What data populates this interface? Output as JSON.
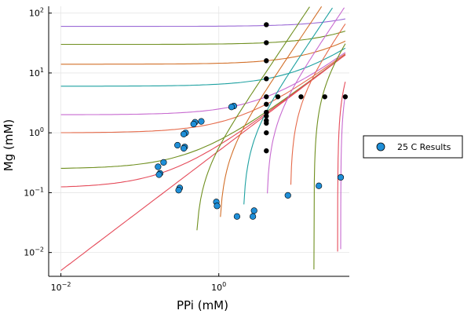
{
  "chart_data": {
    "type": "scatter",
    "title": "",
    "xlabel": "PPi (mM)",
    "ylabel": "Mg (mM)",
    "xscale": "log",
    "yscale": "log",
    "xlim": [
      0.007,
      45
    ],
    "ylim": [
      0.004,
      130
    ],
    "x_ticks": [
      {
        "value": 0.01,
        "base": "10",
        "exp": "−2"
      },
      {
        "value": 1,
        "base": "10",
        "exp": "0"
      }
    ],
    "y_ticks": [
      {
        "value": 0.01,
        "base": "10",
        "exp": "−2"
      },
      {
        "value": 0.1,
        "base": "10",
        "exp": "−1"
      },
      {
        "value": 1,
        "base": "10",
        "exp": "0"
      },
      {
        "value": 10,
        "base": "10",
        "exp": "1"
      },
      {
        "value": 100,
        "base": "10",
        "exp": "2"
      }
    ],
    "grid": true,
    "legend_position": "outer-right",
    "legend": [
      {
        "label": "25 C Results",
        "color": "#1f8fd8",
        "marker": "circle"
      }
    ],
    "model_curves": [
      {
        "type": "rising",
        "c": 60,
        "color": "#9b6bd6"
      },
      {
        "type": "rising",
        "c": 30,
        "color": "#6f8f1f"
      },
      {
        "type": "rising",
        "c": 14,
        "color": "#d2702a"
      },
      {
        "type": "rising",
        "c": 6,
        "color": "#1ea1a1"
      },
      {
        "type": "rising",
        "c": 2,
        "color": "#c76ad0"
      },
      {
        "type": "rising",
        "c": 1,
        "color": "#e56a4a"
      },
      {
        "type": "rising",
        "c": 0.25,
        "color": "#6f8f1f"
      },
      {
        "type": "rising",
        "c": 0.12,
        "color": "#e54b5a"
      },
      {
        "type": "rising",
        "c": 0,
        "color": "#e54b5a"
      },
      {
        "type": "asymptote",
        "c": 0.5,
        "color": "#6f8f1f"
      },
      {
        "type": "asymptote",
        "c": 1,
        "color": "#d2702a"
      },
      {
        "type": "asymptote",
        "c": 2,
        "color": "#1ea1a1"
      },
      {
        "type": "asymptote",
        "c": 4,
        "color": "#c76ad0"
      },
      {
        "type": "asymptote",
        "c": 8,
        "color": "#e56a4a"
      },
      {
        "type": "asymptote",
        "c": 16,
        "color": "#6f8f1f"
      },
      {
        "type": "asymptote",
        "c": 32,
        "color": "#e54b5a"
      },
      {
        "type": "asymptote",
        "c": 35,
        "color": "#c76ad0"
      }
    ],
    "black_points": [
      [
        4,
        64
      ],
      [
        4,
        32
      ],
      [
        4,
        16
      ],
      [
        4,
        8
      ],
      [
        4,
        4
      ],
      [
        4,
        3
      ],
      [
        4,
        2.2
      ],
      [
        4,
        1.9
      ],
      [
        4,
        1.6
      ],
      [
        4,
        1.45
      ],
      [
        4,
        1.0
      ],
      [
        4,
        0.5
      ],
      [
        5.6,
        4
      ],
      [
        11,
        4
      ],
      [
        22,
        4
      ],
      [
        40,
        4
      ]
    ],
    "series": [
      {
        "name": "25 C Results",
        "color": "#1f8fd8",
        "points": [
          [
            1.55,
            2.8
          ],
          [
            1.45,
            2.7
          ],
          [
            0.6,
            1.55
          ],
          [
            0.5,
            1.5
          ],
          [
            0.48,
            1.4
          ],
          [
            0.38,
            1.0
          ],
          [
            0.36,
            0.95
          ],
          [
            0.3,
            0.62
          ],
          [
            0.37,
            0.58
          ],
          [
            0.36,
            0.55
          ],
          [
            0.2,
            0.32
          ],
          [
            0.17,
            0.27
          ],
          [
            0.18,
            0.21
          ],
          [
            0.175,
            0.2
          ],
          [
            0.32,
            0.12
          ],
          [
            0.31,
            0.11
          ],
          [
            0.93,
            0.07
          ],
          [
            0.95,
            0.06
          ],
          [
            2.8,
            0.05
          ],
          [
            2.7,
            0.04
          ],
          [
            1.7,
            0.04
          ],
          [
            7.5,
            0.09
          ],
          [
            18.5,
            0.13
          ],
          [
            35,
            0.18
          ]
        ]
      }
    ]
  }
}
